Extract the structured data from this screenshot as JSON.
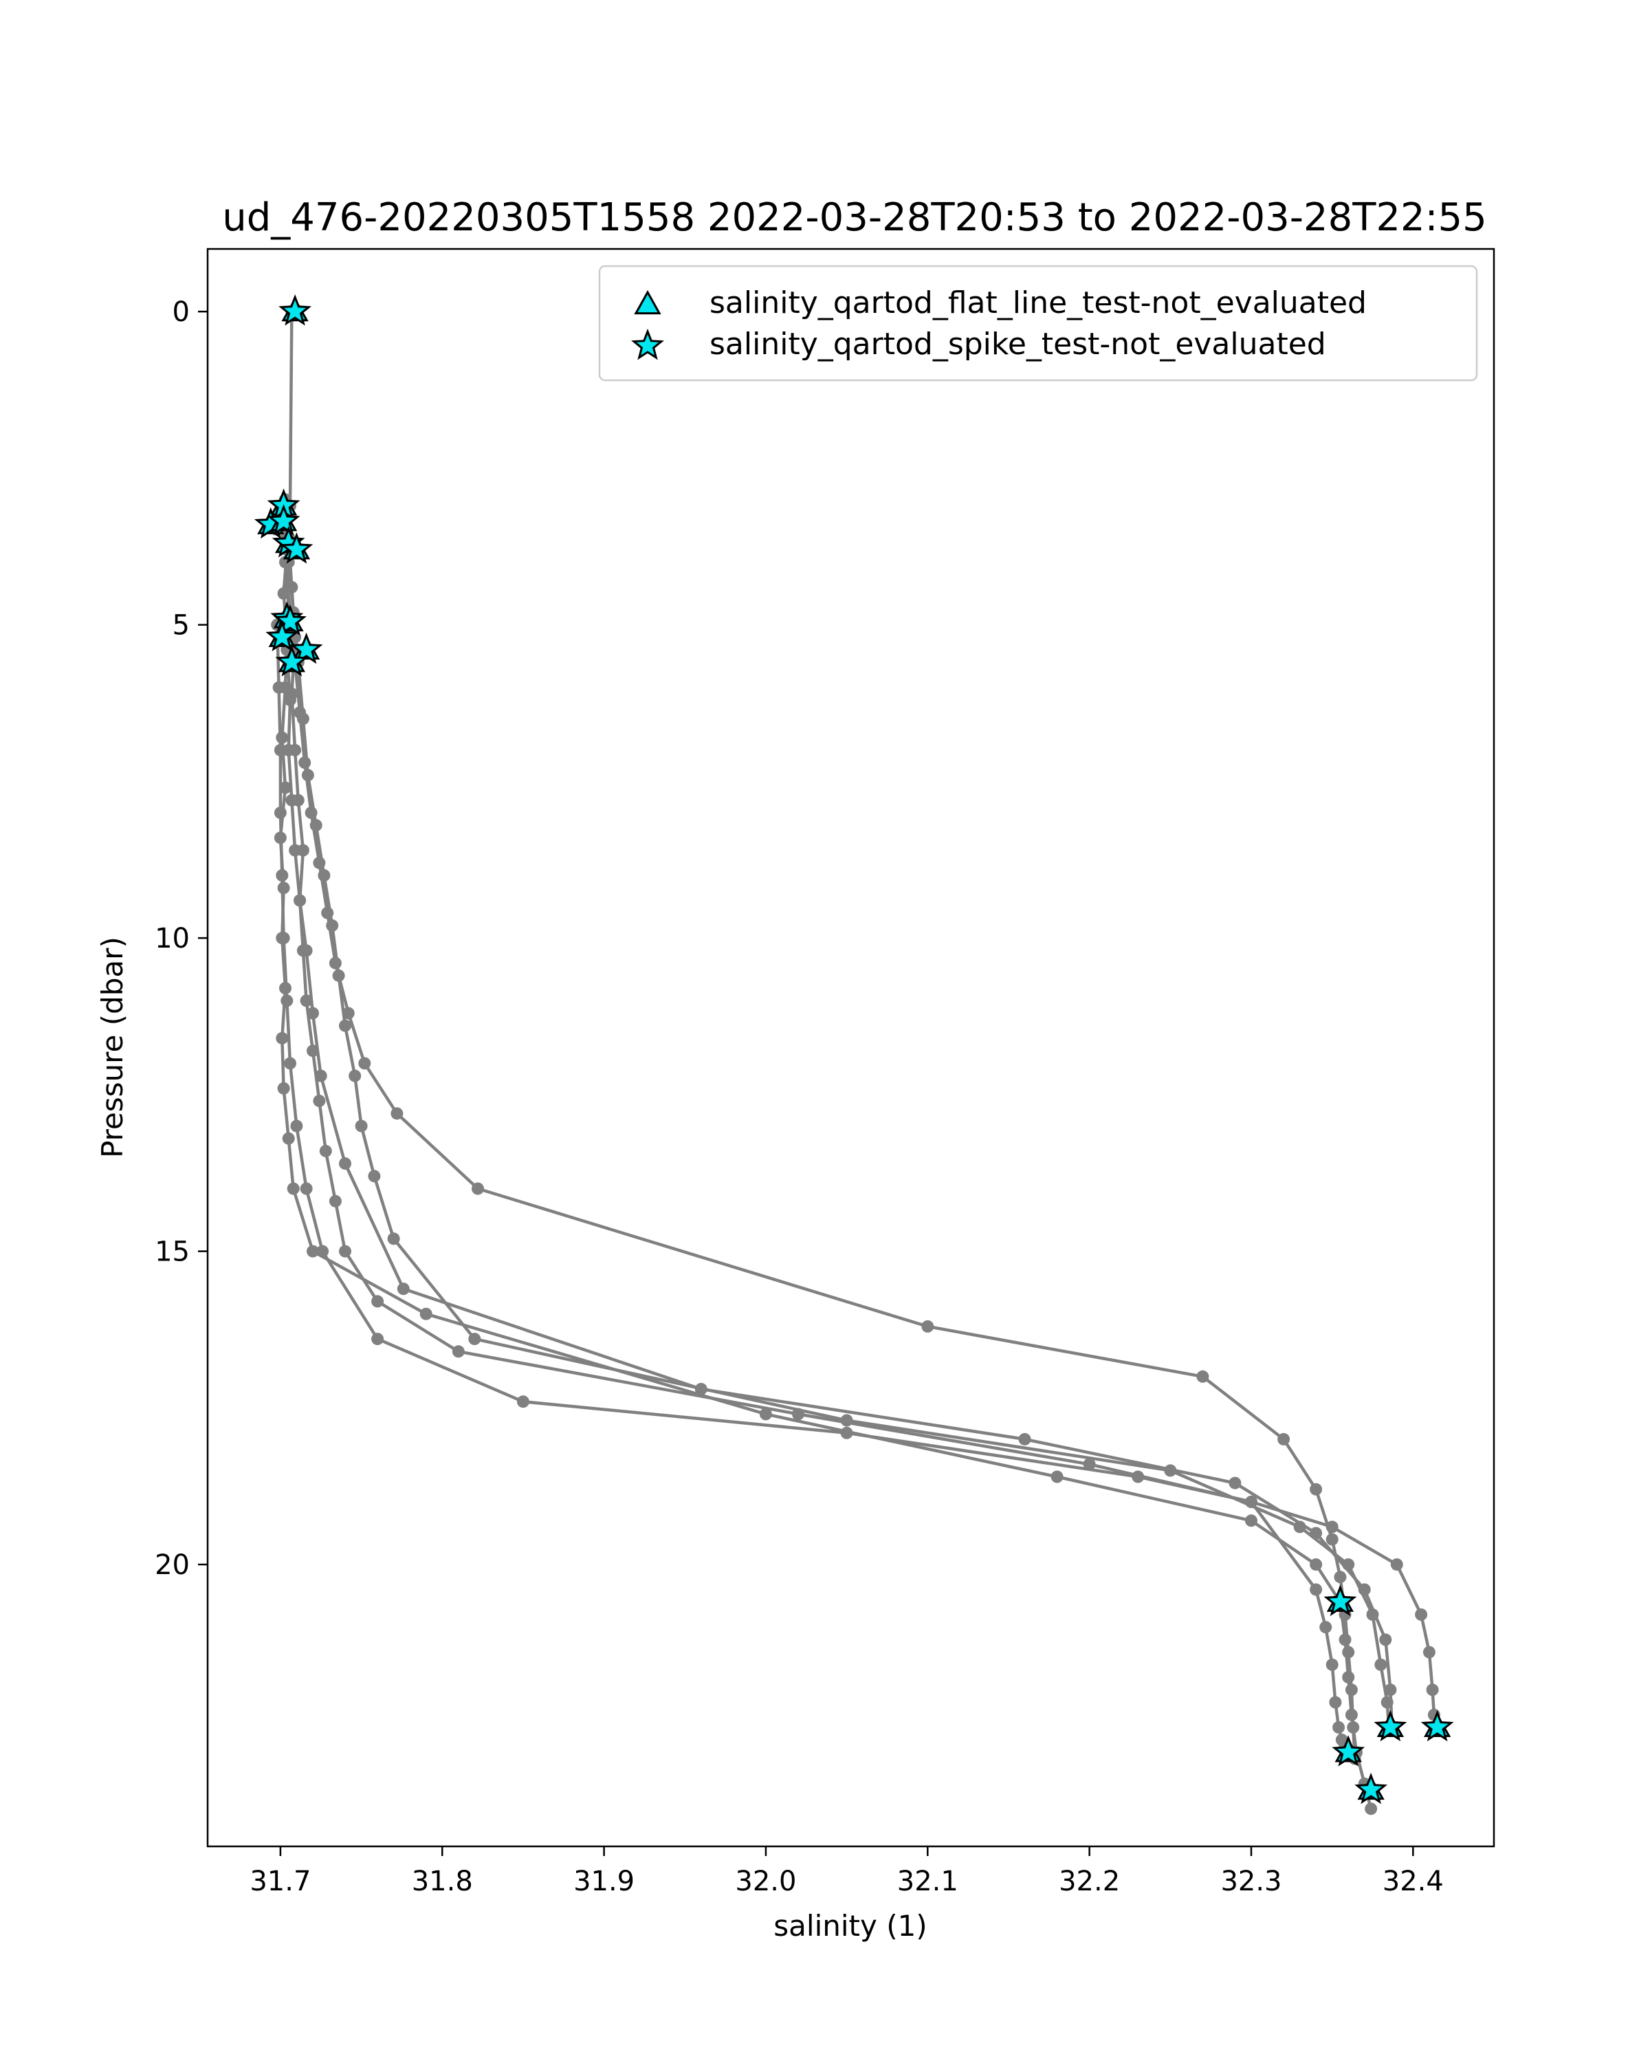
{
  "chart_data": {
    "type": "scatter",
    "title": "ud_476-20220305T1558 2022-03-28T20:53 to 2022-03-28T22:55",
    "xlabel": "salinity (1)",
    "ylabel": "Pressure (dbar)",
    "xlim": [
      31.655,
      32.45
    ],
    "ylim": [
      24.5,
      -1.0
    ],
    "y_inverted": true,
    "x_ticks": [
      31.7,
      31.8,
      31.9,
      32.0,
      32.1,
      32.2,
      32.3,
      32.4
    ],
    "x_tick_labels": [
      "31.7",
      "31.8",
      "31.9",
      "32.0",
      "32.1",
      "32.2",
      "32.3",
      "32.4"
    ],
    "y_ticks": [
      0,
      5,
      10,
      15,
      20
    ],
    "y_tick_labels": [
      "0",
      "5",
      "10",
      "15",
      "20"
    ],
    "grid": false,
    "legend_position": "top-right",
    "colors": {
      "profile": "#808080",
      "flag_fill": "#00e5ee",
      "flag_edge": "#000000"
    },
    "legend": [
      {
        "label": "salinity_qartod_flat_line_test-not_evaluated",
        "marker": "triangle"
      },
      {
        "label": "salinity_qartod_spike_test-not_evaluated",
        "marker": "star"
      }
    ],
    "series": [
      {
        "x": [
          31.707,
          31.706,
          31.704,
          31.702,
          31.704,
          31.703,
          31.701,
          31.703,
          31.7,
          31.702,
          31.701,
          31.703,
          31.701,
          31.702,
          31.705,
          31.708,
          31.72,
          31.79,
          32.0,
          32.18,
          32.3,
          32.34,
          32.355,
          32.358,
          32.36,
          32.362,
          32.365,
          32.37,
          32.374
        ],
        "y": [
          0.0,
          3.1,
          3.8,
          4.5,
          5.2,
          6.0,
          6.8,
          7.6,
          8.4,
          9.2,
          10.0,
          10.8,
          11.6,
          12.4,
          13.2,
          14.0,
          15.0,
          16.0,
          17.6,
          18.6,
          19.3,
          20.0,
          20.6,
          21.2,
          21.8,
          22.4,
          23.0,
          23.5,
          23.9
        ]
      },
      {
        "x": [
          31.7,
          31.703,
          31.705,
          31.704,
          31.706,
          31.705,
          31.707,
          31.709,
          31.712,
          31.714,
          31.716,
          31.72,
          31.724,
          31.728,
          31.734,
          31.74,
          31.76,
          31.81,
          32.02,
          32.2,
          32.3,
          32.34,
          32.346,
          32.35,
          32.352,
          32.354,
          32.356,
          32.358,
          32.36
        ],
        "y": [
          3.4,
          3.6,
          4.4,
          5.4,
          6.2,
          7.0,
          7.8,
          8.6,
          9.4,
          10.2,
          11.0,
          11.8,
          12.6,
          13.4,
          14.2,
          15.0,
          15.8,
          16.6,
          17.6,
          18.4,
          19.0,
          20.4,
          21.0,
          21.6,
          22.2,
          22.6,
          22.8,
          22.9,
          23.0
        ]
      },
      {
        "x": [
          31.703,
          31.705,
          31.708,
          31.711,
          31.714,
          31.717,
          31.722,
          31.727,
          31.732,
          31.736,
          31.74,
          31.746,
          31.75,
          31.758,
          31.77,
          31.82,
          32.05,
          32.25,
          32.33,
          32.36,
          32.375,
          32.38,
          32.384,
          32.385
        ],
        "y": [
          3.0,
          4.0,
          4.8,
          5.6,
          6.5,
          7.4,
          8.2,
          9.0,
          9.8,
          10.6,
          11.4,
          12.2,
          13.0,
          13.8,
          14.8,
          16.4,
          17.7,
          18.5,
          19.4,
          20.0,
          20.8,
          21.6,
          22.2,
          22.6
        ]
      },
      {
        "x": [
          31.698,
          31.699,
          31.7,
          31.7,
          31.701,
          31.702,
          31.704,
          31.706,
          31.71,
          31.716,
          31.726,
          31.76,
          31.85,
          32.05,
          32.23,
          32.3,
          32.35,
          32.39,
          32.405,
          32.41,
          32.412,
          32.413,
          32.415
        ],
        "y": [
          5.0,
          6.0,
          7.0,
          8.0,
          9.0,
          10.0,
          11.0,
          12.0,
          13.0,
          14.0,
          15.0,
          16.4,
          17.4,
          17.9,
          18.6,
          19.0,
          19.4,
          20.0,
          20.8,
          21.4,
          22.0,
          22.4,
          22.6
        ]
      },
      {
        "x": [
          31.703,
          31.706,
          31.709,
          31.712,
          31.715,
          31.719,
          31.724,
          31.729,
          31.734,
          31.742,
          31.752,
          31.772,
          31.822,
          32.1,
          32.27,
          32.32,
          32.34,
          32.35,
          32.355,
          32.358,
          32.36,
          32.362,
          32.363,
          32.364
        ],
        "y": [
          4.0,
          4.8,
          5.6,
          6.4,
          7.2,
          8.0,
          8.8,
          9.6,
          10.4,
          11.2,
          12.0,
          12.8,
          14.0,
          16.2,
          17.0,
          18.0,
          18.8,
          19.6,
          20.2,
          20.8,
          21.4,
          22.0,
          22.6,
          23.1
        ]
      },
      {
        "x": [
          31.705,
          31.707,
          31.709,
          31.707,
          31.709,
          31.711,
          31.714,
          31.712,
          31.716,
          31.72,
          31.725,
          31.74,
          31.776,
          31.96,
          32.16,
          32.29,
          32.34,
          32.37,
          32.383,
          32.386,
          32.387
        ],
        "y": [
          3.6,
          4.4,
          5.2,
          6.1,
          7.0,
          7.8,
          8.6,
          9.4,
          10.2,
          11.2,
          12.2,
          13.6,
          15.6,
          17.2,
          18.0,
          18.7,
          19.5,
          20.4,
          21.2,
          22.0,
          22.6
        ]
      }
    ],
    "flagged_points": [
      {
        "x": 31.709,
        "y": 0.0
      },
      {
        "x": 31.702,
        "y": 3.1
      },
      {
        "x": 31.694,
        "y": 3.4
      },
      {
        "x": 31.702,
        "y": 3.35
      },
      {
        "x": 31.705,
        "y": 3.7
      },
      {
        "x": 31.71,
        "y": 3.8
      },
      {
        "x": 31.704,
        "y": 4.9
      },
      {
        "x": 31.706,
        "y": 4.95
      },
      {
        "x": 31.701,
        "y": 5.2
      },
      {
        "x": 31.716,
        "y": 5.4
      },
      {
        "x": 31.707,
        "y": 5.6
      },
      {
        "x": 32.355,
        "y": 20.6
      },
      {
        "x": 32.386,
        "y": 22.6
      },
      {
        "x": 32.415,
        "y": 22.6
      },
      {
        "x": 32.36,
        "y": 23.0
      },
      {
        "x": 32.374,
        "y": 23.6
      }
    ]
  }
}
